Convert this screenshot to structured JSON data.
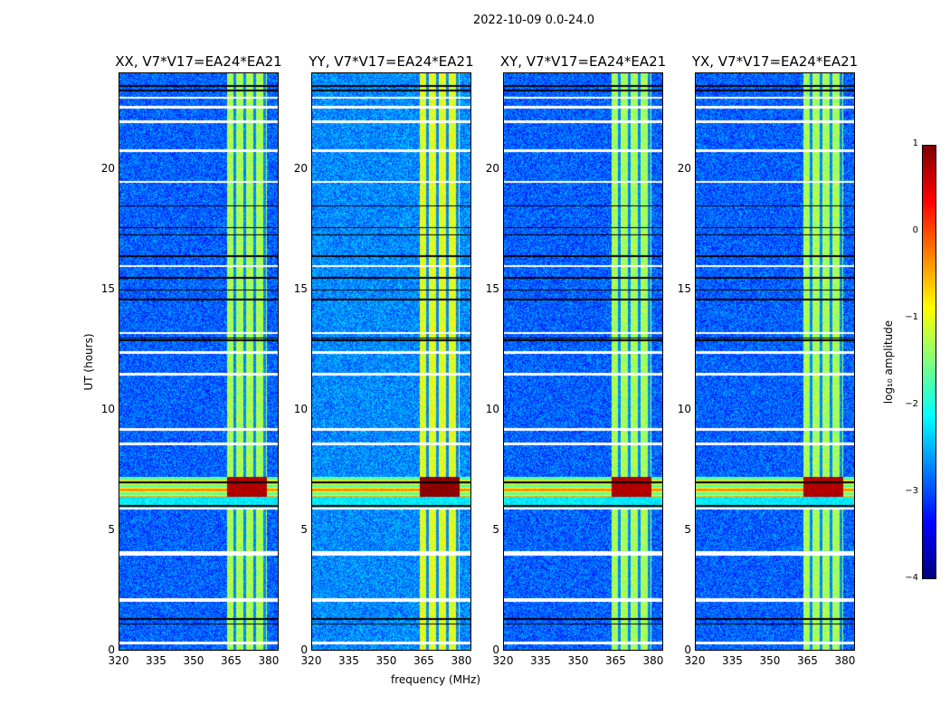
{
  "chart_data": {
    "type": "heatmap",
    "suptitle": "2022-10-09 0.0-24.0",
    "xlabel": "frequency (MHz)",
    "ylabel": "UT (hours)",
    "xlim": [
      320,
      384
    ],
    "ylim": [
      0,
      24
    ],
    "xticks": [
      "320",
      "335",
      "350",
      "365",
      "380"
    ],
    "xtick_values": [
      320,
      335,
      350,
      365,
      380
    ],
    "yticks": [
      "0",
      "5",
      "10",
      "15",
      "20"
    ],
    "ytick_values": [
      0,
      5,
      10,
      15,
      20
    ],
    "panels": [
      {
        "title": "XX, V7*V17=EA24*EA21",
        "background_log_amp": -2.9,
        "band_log_amp": -1.3,
        "rfi_log_amp": 0.6
      },
      {
        "title": "YY, V7*V17=EA24*EA21",
        "background_log_amp": -2.7,
        "band_log_amp": -1.0,
        "rfi_log_amp": 0.8
      },
      {
        "title": "XY, V7*V17=EA24*EA21",
        "background_log_amp": -2.9,
        "band_log_amp": -1.3,
        "rfi_log_amp": 0.6
      },
      {
        "title": "YX, V7*V17=EA24*EA21",
        "background_log_amp": -2.9,
        "band_log_amp": -1.3,
        "rfi_log_amp": 0.6
      }
    ],
    "signal_band_mhz": [
      363.5,
      379.5
    ],
    "band_notch_mhz": [
      366.5,
      370.5,
      374.5,
      378.5
    ],
    "rfi_hours": [
      6.4,
      7.2
    ],
    "flagged_hours_white": [
      0.3,
      2.1,
      4.0,
      5.9,
      8.6,
      9.2,
      11.5,
      12.4,
      13.2,
      16.0,
      19.5,
      20.8,
      22.0,
      22.6,
      23.0
    ],
    "flagged_hours_black": [
      1.1,
      1.3,
      6.0,
      7.0,
      12.9,
      13.0,
      14.6,
      15.0,
      15.5,
      16.4,
      17.3,
      17.6,
      18.5,
      23.3,
      23.5
    ],
    "colorbar": {
      "label": "log₁₀ amplitude",
      "range": [
        -4,
        1
      ],
      "ticks": [
        "1",
        "0",
        "−1",
        "−2",
        "−3",
        "−4"
      ],
      "tick_values": [
        1,
        0,
        -1,
        -2,
        -3,
        -4
      ],
      "colormap": "jet"
    }
  }
}
